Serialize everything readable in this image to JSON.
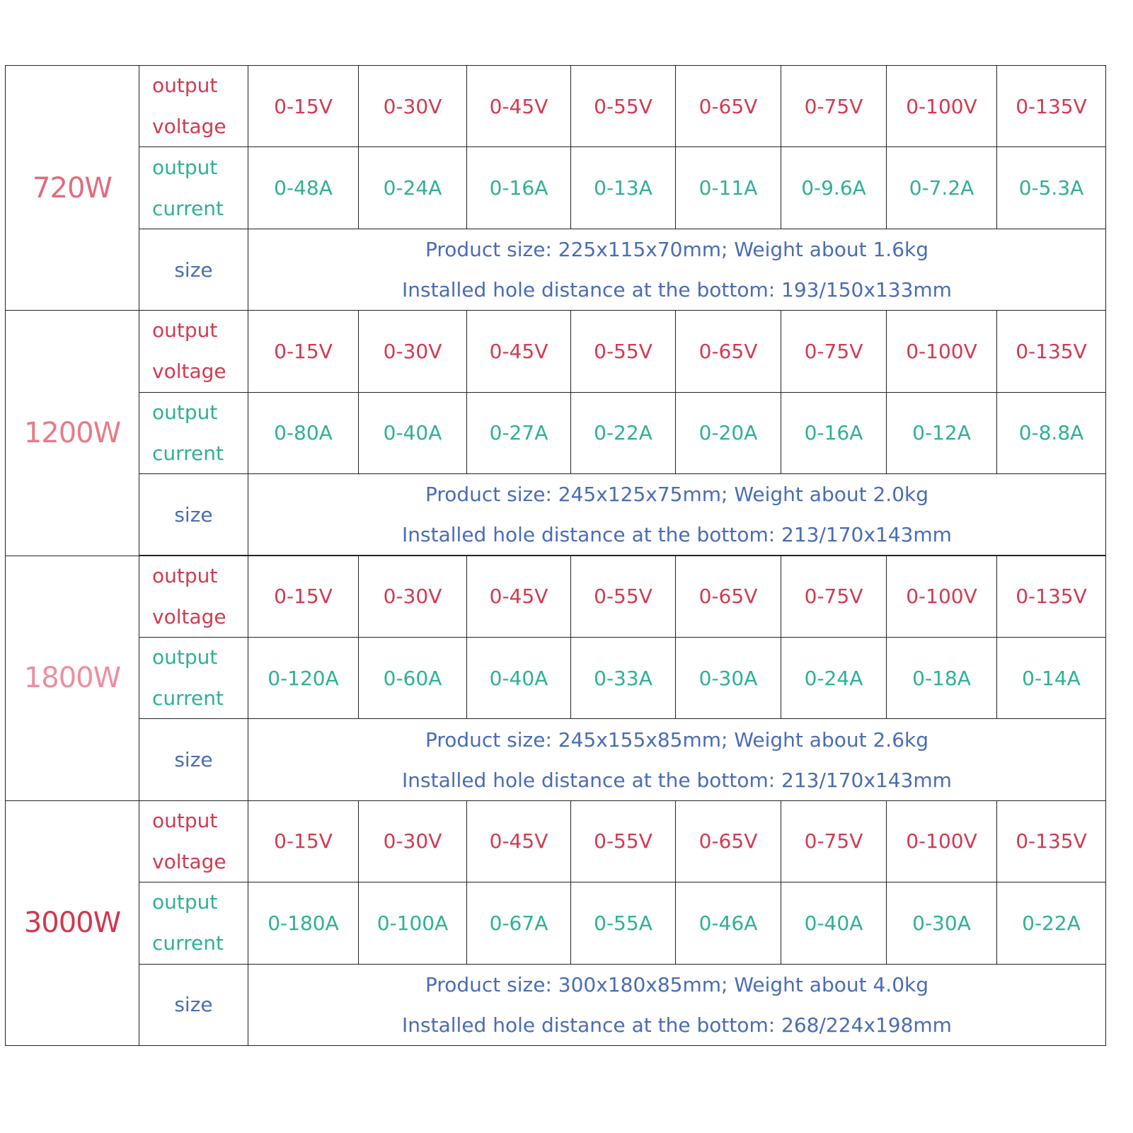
{
  "groups": [
    {
      "power": "720W",
      "voltage": {
        "label": "output voltage",
        "values": [
          "0-15V",
          "0-30V",
          "0-45V",
          "0-55V",
          "0-65V",
          "0-75V",
          "0-100V",
          "0-135V"
        ]
      },
      "current": {
        "label": "output current",
        "values": [
          "0-48A",
          "0-24A",
          "0-16A",
          "0-13A",
          "0-11A",
          "0-9.6A",
          "0-7.2A",
          "0-5.3A"
        ]
      },
      "size": {
        "label": "size",
        "lines": [
          "Product size: 225x115x70mm; Weight about 1.6kg",
          "Installed hole distance at the bottom: 193/150x133mm"
        ]
      }
    },
    {
      "power": "1200W",
      "voltage": {
        "label": "output voltage",
        "values": [
          "0-15V",
          "0-30V",
          "0-45V",
          "0-55V",
          "0-65V",
          "0-75V",
          "0-100V",
          "0-135V"
        ]
      },
      "current": {
        "label": "output current",
        "values": [
          "0-80A",
          "0-40A",
          "0-27A",
          "0-22A",
          "0-20A",
          "0-16A",
          "0-12A",
          "0-8.8A"
        ]
      },
      "size": {
        "label": "size",
        "lines": [
          "Product size: 245x125x75mm; Weight about 2.0kg",
          "Installed hole distance at the bottom: 213/170x143mm"
        ]
      }
    },
    {
      "power": "1800W",
      "voltage": {
        "label": "output voltage",
        "values": [
          "0-15V",
          "0-30V",
          "0-45V",
          "0-55V",
          "0-65V",
          "0-75V",
          "0-100V",
          "0-135V"
        ]
      },
      "current": {
        "label": "output current",
        "values": [
          "0-120A",
          "0-60A",
          "0-40A",
          "0-33A",
          "0-30A",
          "0-24A",
          "0-18A",
          "0-14A"
        ]
      },
      "size": {
        "label": "size",
        "lines": [
          "Product size: 245x155x85mm; Weight about 2.6kg",
          "Installed hole distance at the bottom: 213/170x143mm"
        ]
      }
    },
    {
      "power": "3000W",
      "voltage": {
        "label": "output voltage",
        "values": [
          "0-15V",
          "0-30V",
          "0-45V",
          "0-55V",
          "0-65V",
          "0-75V",
          "0-100V",
          "0-135V"
        ]
      },
      "current": {
        "label": "output current",
        "values": [
          "0-180A",
          "0-100A",
          "0-67A",
          "0-55A",
          "0-46A",
          "0-40A",
          "0-30A",
          "0-22A"
        ]
      },
      "size": {
        "label": "size",
        "lines": [
          "Product size: 300x180x85mm; Weight about 4.0kg",
          "Installed hole distance at the bottom: 268/224x198mm"
        ]
      }
    }
  ]
}
